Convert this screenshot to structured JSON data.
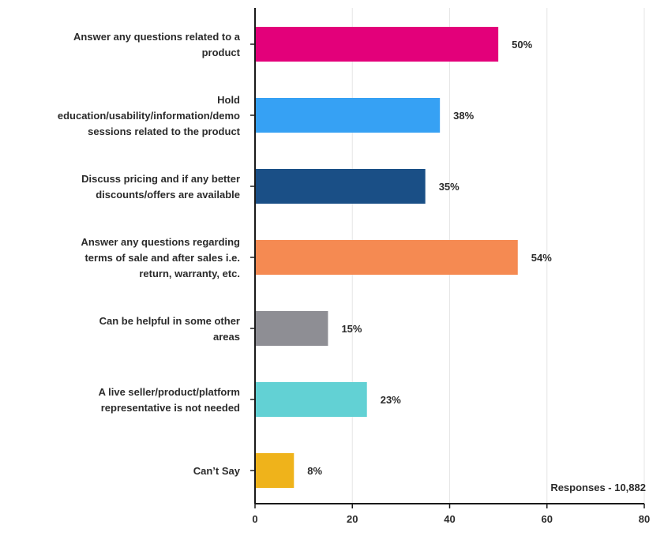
{
  "chart_data": {
    "type": "bar",
    "orientation": "horizontal",
    "categories": [
      [
        "Answer any questions related to a",
        "product"
      ],
      [
        "Hold",
        "education/usability/information/demo",
        "sessions related to the product"
      ],
      [
        "Discuss pricing and if any better",
        "discounts/offers are available"
      ],
      [
        "Answer any questions regarding",
        "terms of sale and after sales i.e.",
        "return, warranty, etc."
      ],
      [
        "Can be helpful in some other",
        "areas"
      ],
      [
        "A live seller/product/platform",
        "representative is not needed"
      ],
      [
        "Can’t Say"
      ]
    ],
    "values": [
      50,
      38,
      35,
      54,
      15,
      23,
      8
    ],
    "value_labels": [
      "50%",
      "38%",
      "35%",
      "54%",
      "15%",
      "23%",
      "8%"
    ],
    "colors": [
      "#e3007a",
      "#36a1f4",
      "#1a4f86",
      "#f58a52",
      "#8e8e94",
      "#62d1d4",
      "#efb31b"
    ],
    "xlim": [
      0,
      80
    ],
    "xticks": [
      0,
      20,
      40,
      60,
      80
    ],
    "xtick_labels": [
      "0",
      "20",
      "40",
      "60",
      "80"
    ],
    "grid": true,
    "annotation": "Responses - 10,882"
  }
}
